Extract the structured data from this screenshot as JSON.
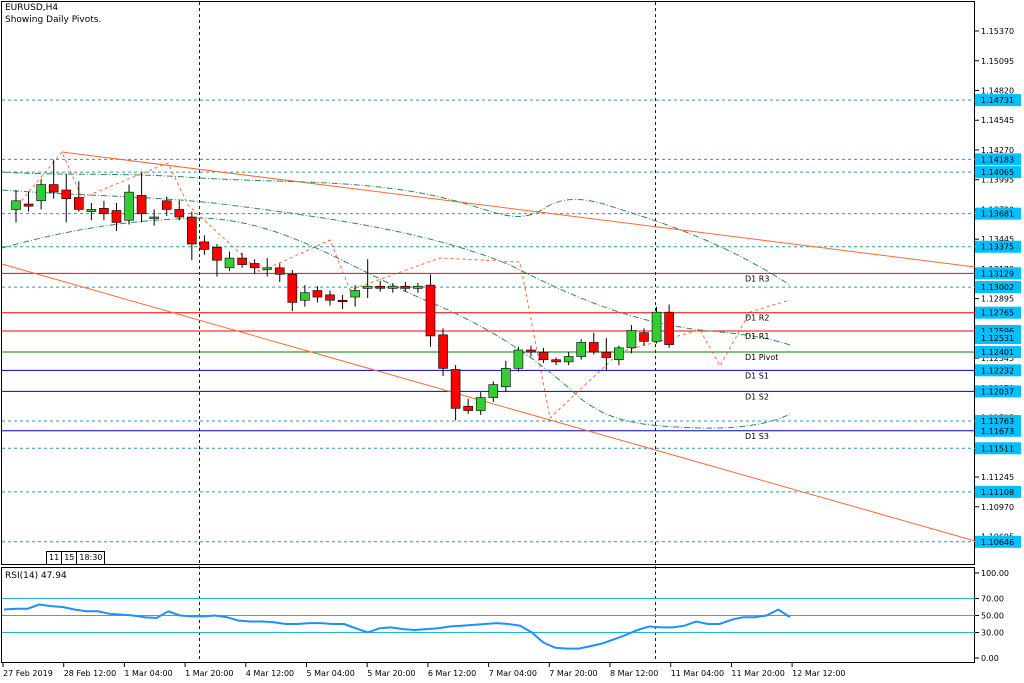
{
  "header": {
    "symbol_line": "EURUSD,H4",
    "subtitle": "Showing Daily Pivots."
  },
  "rsi_label": "RSI(14) 47.94",
  "time_box": [
    "11",
    "15",
    "18:30"
  ],
  "colors": {
    "bull": "#32cd32",
    "bear": "#ff0000",
    "channel": "#ff6a33",
    "pivot_red": "#ff0000",
    "pivot_green": "#008000",
    "pivot_blue": "#0000cd",
    "dashed_levels": "#20a0a0",
    "rsi_line": "#1e90ff",
    "tag_bg": "#00bfff"
  },
  "chart_data": [
    {
      "type": "candlestick",
      "symbol": "EURUSD",
      "timeframe": "H4",
      "ylim": [
        1.1045,
        1.1562
      ],
      "x_tick_labels": [
        "27 Feb 2019",
        "28 Feb 12:00",
        "1 Mar 04:00",
        "1 Mar 20:00",
        "4 Mar 12:00",
        "5 Mar 04:00",
        "5 Mar 20:00",
        "6 Mar 12:00",
        "7 Mar 04:00",
        "7 Mar 20:00",
        "8 Mar 12:00",
        "11 Mar 04:00",
        "11 Mar 20:00",
        "12 Mar 12:00"
      ],
      "y_tick_labels": [
        "1.15370",
        "1.15095",
        "1.14820",
        "1.14545",
        "1.14270",
        "1.13995",
        "1.13720",
        "1.13445",
        "1.13170",
        "1.12895",
        "1.12620",
        "1.12345",
        "1.12070",
        "1.11795",
        "1.11520",
        "1.11245",
        "1.10970",
        "1.10695"
      ],
      "price_tags": [
        "1.14731",
        "1.14183",
        "1.14065",
        "1.13681",
        "1.13375",
        "1.13129",
        "1.13002",
        "1.12765",
        "1.12596",
        "1.12531",
        "1.12401",
        "1.12232",
        "1.12037",
        "1.11763",
        "1.11673",
        "1.11511",
        "1.11108",
        "1.10646"
      ],
      "pivot_labels": [
        {
          "label": "D1 R3",
          "value": 1.13129
        },
        {
          "label": "D1 R2",
          "value": 1.12765
        },
        {
          "label": "D1 R1",
          "value": 1.12596
        },
        {
          "label": "D1 Pivot",
          "value": 1.12401
        },
        {
          "label": "D1 S1",
          "value": 1.12232
        },
        {
          "label": "D1 S2",
          "value": 1.12037
        },
        {
          "label": "D1 S3",
          "value": 1.11673
        }
      ],
      "candles": [
        {
          "o": 1.1372,
          "h": 1.139,
          "l": 1.136,
          "c": 1.138
        },
        {
          "o": 1.1377,
          "h": 1.1388,
          "l": 1.137,
          "c": 1.1375
        },
        {
          "o": 1.138,
          "h": 1.14,
          "l": 1.1372,
          "c": 1.1395
        },
        {
          "o": 1.1395,
          "h": 1.1418,
          "l": 1.1382,
          "c": 1.1388
        },
        {
          "o": 1.139,
          "h": 1.1405,
          "l": 1.136,
          "c": 1.1382
        },
        {
          "o": 1.1383,
          "h": 1.1398,
          "l": 1.137,
          "c": 1.1372
        },
        {
          "o": 1.137,
          "h": 1.1378,
          "l": 1.1362,
          "c": 1.1372
        },
        {
          "o": 1.1373,
          "h": 1.138,
          "l": 1.1362,
          "c": 1.1368
        },
        {
          "o": 1.1371,
          "h": 1.1378,
          "l": 1.1352,
          "c": 1.136
        },
        {
          "o": 1.1362,
          "h": 1.1395,
          "l": 1.1358,
          "c": 1.1388
        },
        {
          "o": 1.1385,
          "h": 1.1406,
          "l": 1.136,
          "c": 1.1368
        },
        {
          "o": 1.1365,
          "h": 1.1372,
          "l": 1.1357,
          "c": 1.1365
        },
        {
          "o": 1.138,
          "h": 1.1384,
          "l": 1.1366,
          "c": 1.1372
        },
        {
          "o": 1.1372,
          "h": 1.138,
          "l": 1.1362,
          "c": 1.1365
        },
        {
          "o": 1.1365,
          "h": 1.137,
          "l": 1.1325,
          "c": 1.134
        },
        {
          "o": 1.1342,
          "h": 1.1348,
          "l": 1.133,
          "c": 1.1335
        },
        {
          "o": 1.1337,
          "h": 1.134,
          "l": 1.131,
          "c": 1.1325
        },
        {
          "o": 1.1318,
          "h": 1.1333,
          "l": 1.1315,
          "c": 1.1327
        },
        {
          "o": 1.1327,
          "h": 1.1332,
          "l": 1.1318,
          "c": 1.1321
        },
        {
          "o": 1.1322,
          "h": 1.1326,
          "l": 1.1312,
          "c": 1.1318
        },
        {
          "o": 1.1318,
          "h": 1.1327,
          "l": 1.131,
          "c": 1.1318
        },
        {
          "o": 1.1318,
          "h": 1.1322,
          "l": 1.1305,
          "c": 1.1312
        },
        {
          "o": 1.1312,
          "h": 1.1316,
          "l": 1.1278,
          "c": 1.1286
        },
        {
          "o": 1.1288,
          "h": 1.1302,
          "l": 1.1282,
          "c": 1.1295
        },
        {
          "o": 1.1297,
          "h": 1.1301,
          "l": 1.1286,
          "c": 1.1291
        },
        {
          "o": 1.1293,
          "h": 1.1297,
          "l": 1.1283,
          "c": 1.1288
        },
        {
          "o": 1.1288,
          "h": 1.1293,
          "l": 1.128,
          "c": 1.1287
        },
        {
          "o": 1.1291,
          "h": 1.1302,
          "l": 1.1282,
          "c": 1.1297
        },
        {
          "o": 1.1299,
          "h": 1.1326,
          "l": 1.129,
          "c": 1.1301
        },
        {
          "o": 1.1301,
          "h": 1.1306,
          "l": 1.1296,
          "c": 1.1299
        },
        {
          "o": 1.1299,
          "h": 1.1304,
          "l": 1.1295,
          "c": 1.1301
        },
        {
          "o": 1.1301,
          "h": 1.1305,
          "l": 1.1296,
          "c": 1.1299
        },
        {
          "o": 1.1299,
          "h": 1.1304,
          "l": 1.1295,
          "c": 1.1301
        },
        {
          "o": 1.1302,
          "h": 1.1312,
          "l": 1.1245,
          "c": 1.1255
        },
        {
          "o": 1.1256,
          "h": 1.1262,
          "l": 1.1218,
          "c": 1.1225
        },
        {
          "o": 1.1224,
          "h": 1.1228,
          "l": 1.1177,
          "c": 1.1188
        },
        {
          "o": 1.119,
          "h": 1.1197,
          "l": 1.1183,
          "c": 1.1186
        },
        {
          "o": 1.1186,
          "h": 1.1203,
          "l": 1.1182,
          "c": 1.1198
        },
        {
          "o": 1.1198,
          "h": 1.1213,
          "l": 1.1194,
          "c": 1.121
        },
        {
          "o": 1.1208,
          "h": 1.1232,
          "l": 1.1203,
          "c": 1.1225
        },
        {
          "o": 1.1225,
          "h": 1.1245,
          "l": 1.1222,
          "c": 1.1242
        },
        {
          "o": 1.1242,
          "h": 1.1246,
          "l": 1.1236,
          "c": 1.124
        },
        {
          "o": 1.124,
          "h": 1.1244,
          "l": 1.123,
          "c": 1.1233
        },
        {
          "o": 1.1233,
          "h": 1.1235,
          "l": 1.1228,
          "c": 1.1231
        },
        {
          "o": 1.1231,
          "h": 1.124,
          "l": 1.1228,
          "c": 1.1236
        },
        {
          "o": 1.1236,
          "h": 1.1252,
          "l": 1.1233,
          "c": 1.1249
        },
        {
          "o": 1.1249,
          "h": 1.1258,
          "l": 1.1238,
          "c": 1.124
        },
        {
          "o": 1.124,
          "h": 1.1253,
          "l": 1.1223,
          "c": 1.1235
        },
        {
          "o": 1.1233,
          "h": 1.1246,
          "l": 1.1228,
          "c": 1.1244
        },
        {
          "o": 1.1244,
          "h": 1.1265,
          "l": 1.1239,
          "c": 1.126
        },
        {
          "o": 1.1258,
          "h": 1.1262,
          "l": 1.1246,
          "c": 1.125
        },
        {
          "o": 1.125,
          "h": 1.1282,
          "l": 1.1248,
          "c": 1.1277
        },
        {
          "o": 1.1277,
          "h": 1.1284,
          "l": 1.1244,
          "c": 1.1247
        }
      ]
    },
    {
      "type": "line",
      "title": "RSI(14) 47.94",
      "ylim": [
        0,
        100
      ],
      "y_tick_labels": [
        "100.00",
        "70.00",
        "50.00",
        "30.00",
        "0.00"
      ],
      "levels": [
        70,
        50,
        30
      ],
      "values": [
        57,
        58,
        58,
        63,
        61,
        60,
        57,
        55,
        55,
        52,
        51,
        50,
        48,
        47,
        55,
        50,
        49,
        49,
        50,
        48,
        44,
        43,
        43,
        42,
        40,
        40,
        41,
        41,
        40,
        40,
        35,
        30,
        35,
        36,
        34,
        33,
        34,
        35,
        37,
        38,
        39,
        40,
        41,
        40,
        38,
        30,
        18,
        12,
        11,
        11,
        14,
        17,
        22,
        27,
        33,
        37,
        36,
        36,
        38,
        43,
        40,
        40,
        45,
        48,
        48,
        50,
        57,
        48
      ],
      "last_value": 47.94
    }
  ]
}
